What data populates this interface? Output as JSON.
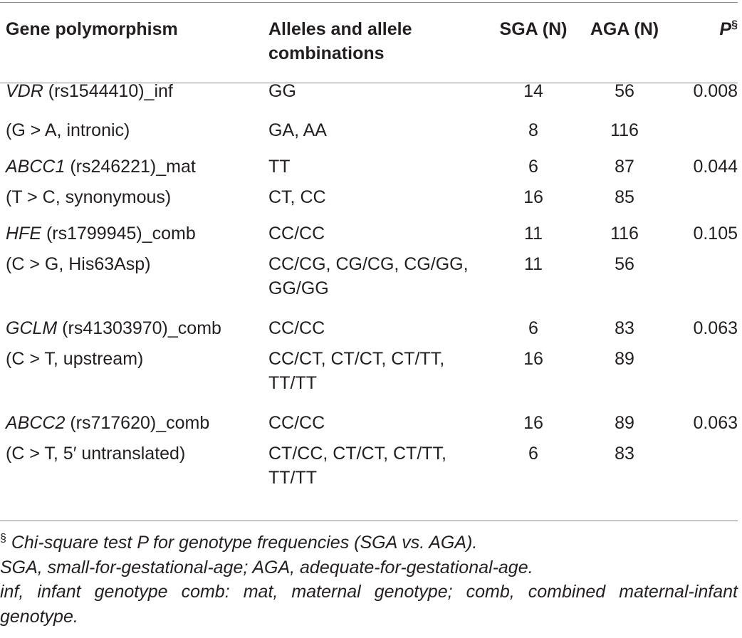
{
  "table": {
    "headers": {
      "gene": "Gene polymorphism",
      "alleles": "Alleles and allele combinations",
      "sga": "SGA (N)",
      "aga": "AGA (N)",
      "p": "P",
      "p_mark": "§"
    },
    "rows": [
      {
        "gene_name": "VDR",
        "gene_rest": " (rs1544410)_inf",
        "alleles": "GG",
        "sga": "14",
        "aga": "56",
        "p": "0.008"
      },
      {
        "gene_name": "",
        "gene_rest": "(G > A, intronic)",
        "alleles": "GA, AA",
        "sga": "8",
        "aga": "116",
        "p": ""
      },
      {
        "gene_name": "ABCC1",
        "gene_rest": " (rs246221)_mat",
        "alleles": "TT",
        "sga": "6",
        "aga": "87",
        "p": "0.044"
      },
      {
        "gene_name": "",
        "gene_rest": "(T > C, synonymous)",
        "alleles": "CT, CC",
        "sga": "16",
        "aga": "85",
        "p": ""
      },
      {
        "gene_name": "HFE",
        "gene_rest": " (rs1799945)_comb",
        "alleles": "CC/CC",
        "sga": "11",
        "aga": "116",
        "p": "0.105"
      },
      {
        "gene_name": "",
        "gene_rest": "(C > G, His63Asp)",
        "alleles": "CC/CG, CG/CG, CG/GG, GG/GG",
        "sga": "11",
        "aga": "56",
        "p": ""
      },
      {
        "gene_name": "GCLM",
        "gene_rest": " (rs41303970)_comb",
        "alleles": "CC/CC",
        "sga": "6",
        "aga": "83",
        "p": "0.063"
      },
      {
        "gene_name": "",
        "gene_rest": "(C > T, upstream)",
        "alleles": "CC/CT, CT/CT, CT/TT, TT/TT",
        "sga": "16",
        "aga": "89",
        "p": ""
      },
      {
        "gene_name": "ABCC2",
        "gene_rest": " (rs717620)_comb",
        "alleles": "CC/CC",
        "sga": "16",
        "aga": "89",
        "p": "0.063"
      },
      {
        "gene_name": "",
        "gene_rest": "(C > T, 5′ untranslated)",
        "alleles": "CT/CC, CT/CT, CT/TT, TT/TT",
        "sga": "6",
        "aga": "83",
        "p": ""
      }
    ]
  },
  "footnotes": {
    "mark": "§",
    "line1": " Chi-square test P for genotype frequencies (SGA vs. AGA).",
    "line2": "SGA, small-for-gestational-age; AGA, adequate-for-gestational-age.",
    "line3": "inf, infant genotype comb: mat, maternal genotype; comb, combined maternal-infant genotype."
  }
}
